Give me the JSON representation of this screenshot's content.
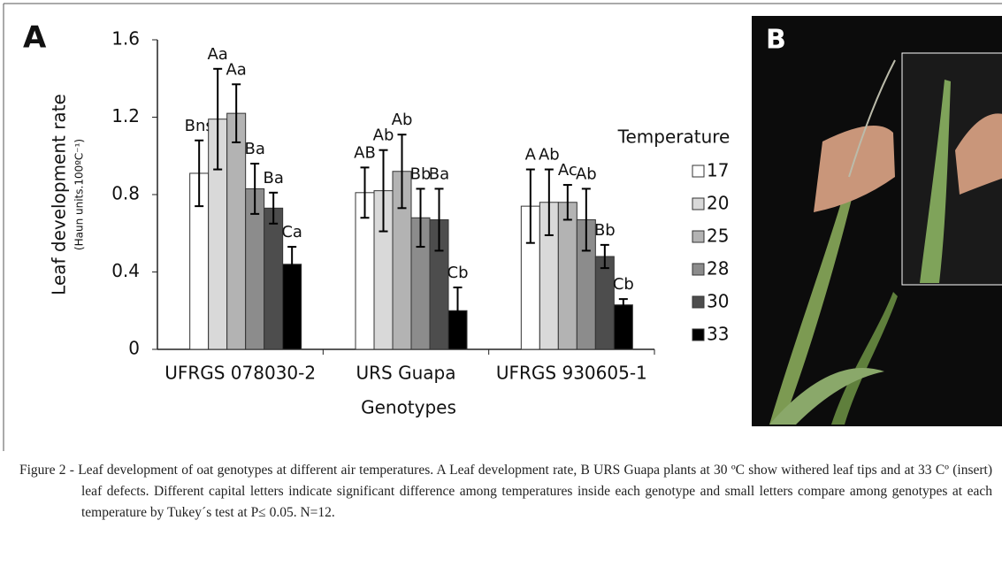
{
  "chart_data": {
    "type": "bar",
    "panel_label": "A",
    "ylabel": "Leaf development rate",
    "ylabel_sub": "(Haun units.100ºC⁻¹)",
    "xlabel": "Genotypes",
    "categories": [
      "UFRGS 078030-2",
      "URS Guapa",
      "UFRGS 930605-1"
    ],
    "legend_title": "Temperature",
    "ylim": [
      0,
      1.6
    ],
    "yticks": [
      0,
      0.4,
      0.8,
      1.2,
      1.6
    ],
    "series": [
      {
        "name": "17",
        "color": "#ffffff",
        "values": [
          0.91,
          0.81,
          0.74
        ],
        "errors": [
          0.17,
          0.13,
          0.19
        ],
        "letters": [
          "Bns",
          "AB",
          "A"
        ]
      },
      {
        "name": "20",
        "color": "#d9d9d9",
        "values": [
          1.19,
          0.82,
          0.76
        ],
        "errors": [
          0.26,
          0.21,
          0.17
        ],
        "letters": [
          "Aa",
          "Ab",
          "Ab"
        ]
      },
      {
        "name": "25",
        "color": "#b3b3b3",
        "values": [
          1.22,
          0.92,
          0.76
        ],
        "errors": [
          0.15,
          0.19,
          0.09
        ],
        "letters": [
          "Aa",
          "Ab",
          "Ac"
        ]
      },
      {
        "name": "28",
        "color": "#8c8c8c",
        "values": [
          0.83,
          0.68,
          0.67
        ],
        "errors": [
          0.13,
          0.15,
          0.16
        ],
        "letters": [
          "Ba",
          "Bb",
          "Ab"
        ]
      },
      {
        "name": "30",
        "color": "#4d4d4d",
        "values": [
          0.73,
          0.67,
          0.48
        ],
        "errors": [
          0.08,
          0.16,
          0.06
        ],
        "letters": [
          "Ba",
          "Ba",
          "Bb"
        ]
      },
      {
        "name": "33",
        "color": "#000000",
        "values": [
          0.44,
          0.2,
          0.23
        ],
        "errors": [
          0.09,
          0.12,
          0.03
        ],
        "letters": [
          "Ca",
          "Cb",
          "Cb"
        ]
      }
    ]
  },
  "photo": {
    "panel_label": "B"
  },
  "caption": {
    "label": "Figure 2 -",
    "text": "Leaf development of oat genotypes at different air temperatures. A Leaf development rate, B URS Guapa plants at 30 ºC show withered leaf tips and at 33 Cº (insert) leaf defects. Different capital letters indicate significant difference among temperatures inside each genotype and small letters compare among genotypes at each temperature by Tukey´s test at P≤ 0.05. N=12."
  }
}
